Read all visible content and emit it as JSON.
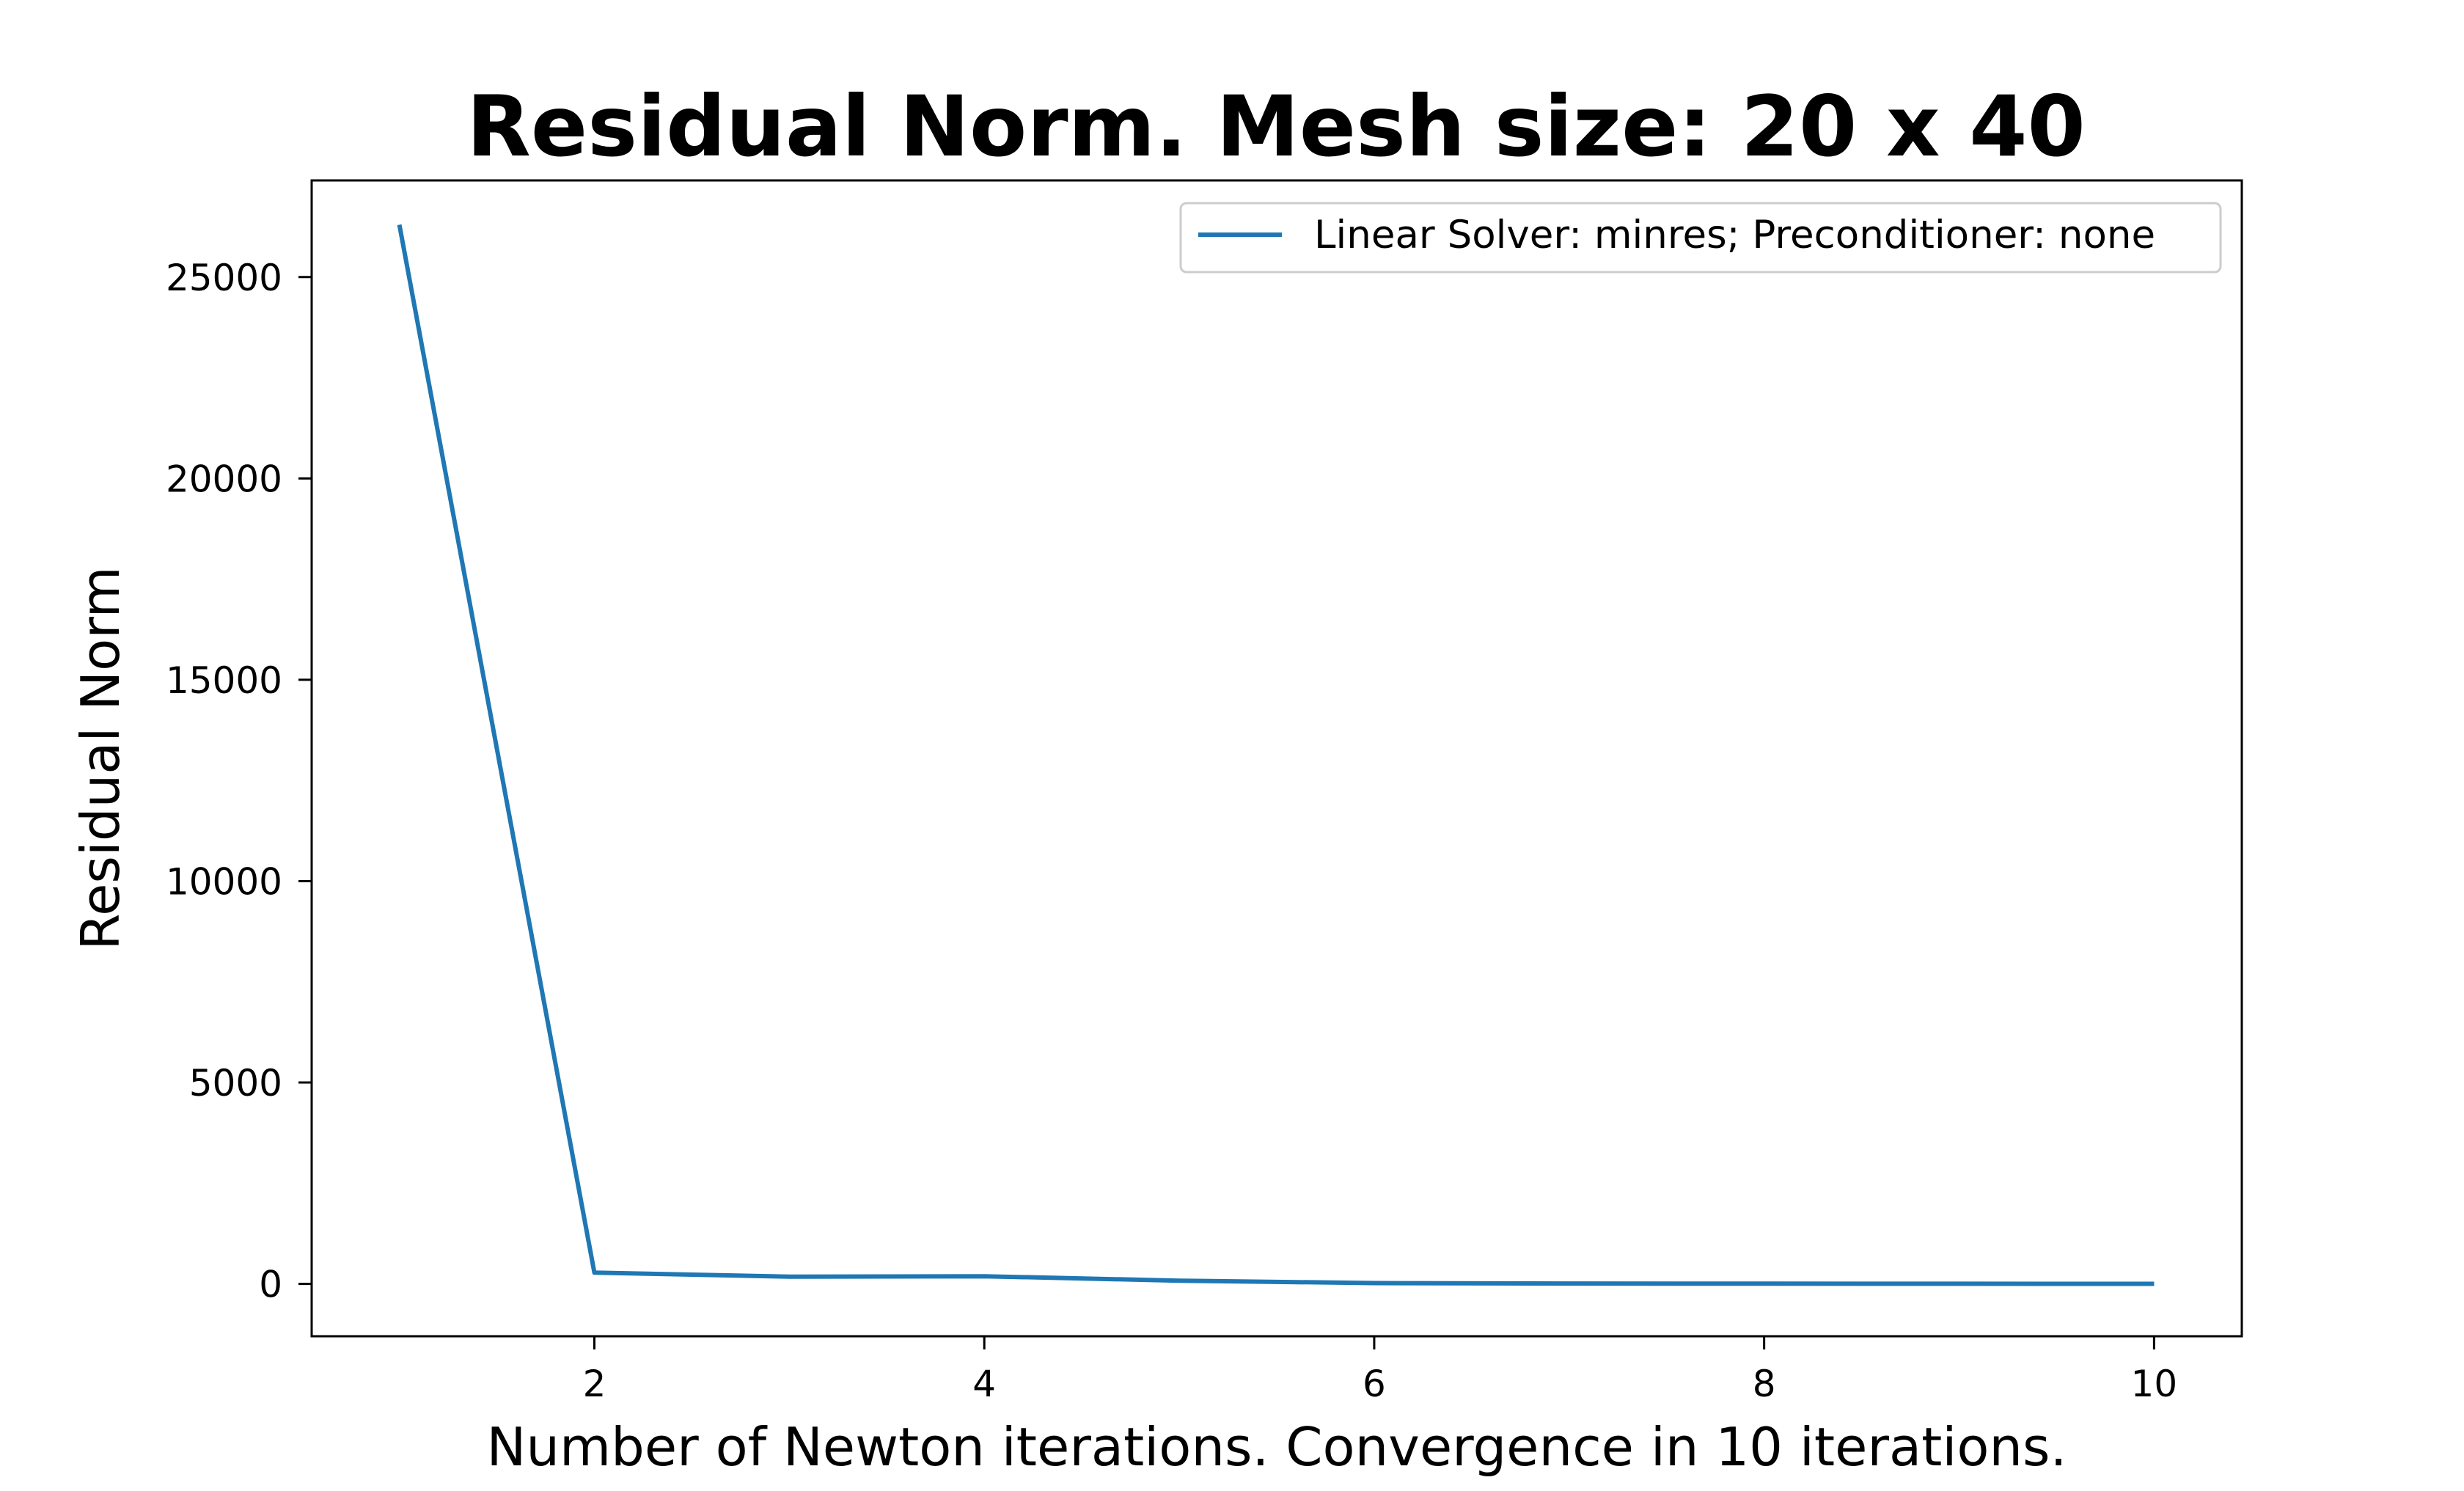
{
  "chart_data": {
    "type": "line",
    "title": "Residual Norm. Mesh size: 20 x 40",
    "xlabel": "Number of Newton iterations. Convergence in 10 iterations.",
    "ylabel": "Residual Norm",
    "xlim": [
      0.55,
      10.45
    ],
    "ylim": [
      -1300,
      27400
    ],
    "xticks": [
      2,
      4,
      6,
      8,
      10
    ],
    "yticks": [
      0,
      5000,
      10000,
      15000,
      20000,
      25000
    ],
    "grid": false,
    "legend": {
      "position": "upper right"
    },
    "series": [
      {
        "name": "Linear Solver: minres; Preconditioner: none",
        "color": "#1f77b4",
        "x": [
          1,
          2,
          3,
          4,
          5,
          6,
          7,
          8,
          9,
          10
        ],
        "y": [
          26300,
          280,
          180,
          190,
          80,
          20,
          10,
          5,
          3,
          2
        ]
      }
    ]
  }
}
